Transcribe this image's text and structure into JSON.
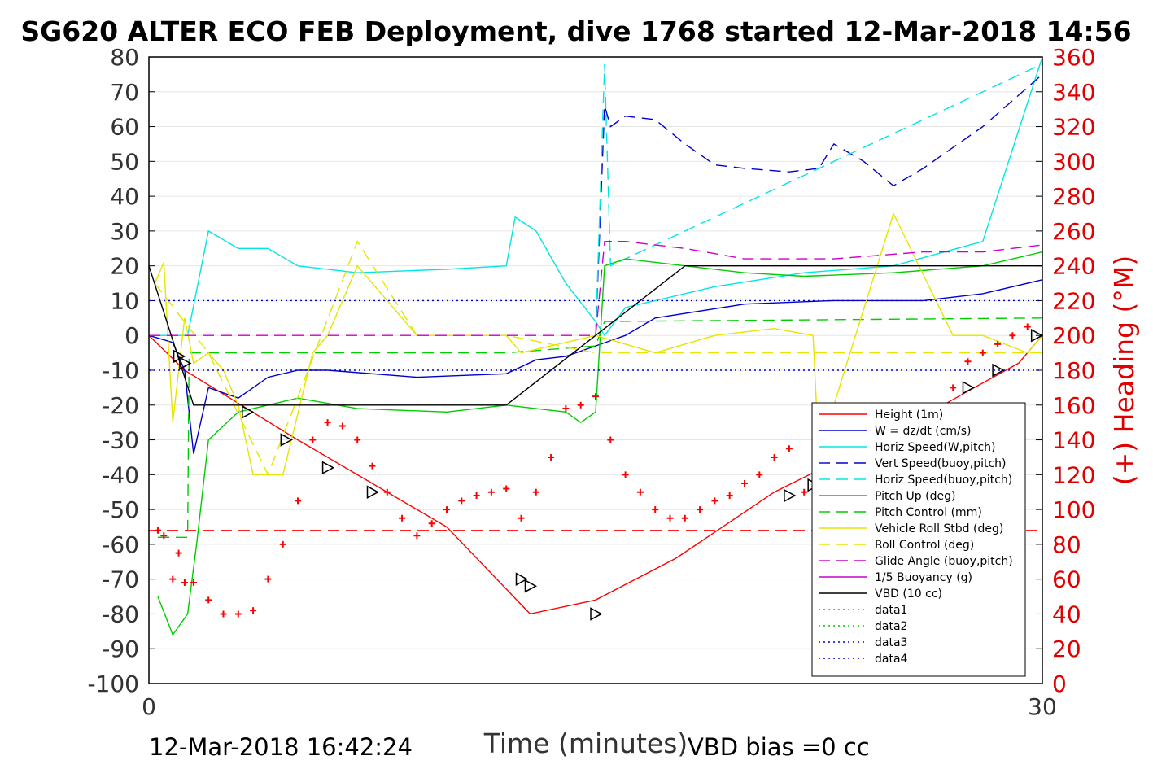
{
  "chart_data": {
    "type": "line",
    "title": "SG620 ALTER ECO FEB Deployment, dive 1768 started 12-Mar-2018 14:56",
    "xlabel": "Time (minutes)",
    "ylabel_right": "(+) Heading (°M)",
    "xlim": [
      0,
      30
    ],
    "ylim": [
      -100,
      80
    ],
    "ylim_right": [
      0,
      360
    ],
    "x_ticks": [
      "0",
      "30"
    ],
    "y_ticks": [
      "80",
      "70",
      "60",
      "50",
      "40",
      "30",
      "20",
      "10",
      "0",
      "-10",
      "-20",
      "-30",
      "-40",
      "-50",
      "-60",
      "-70",
      "-80",
      "-90",
      "-100"
    ],
    "y_ticks_right": [
      "360",
      "340",
      "320",
      "300",
      "280",
      "260",
      "240",
      "220",
      "200",
      "180",
      "160",
      "140",
      "120",
      "100",
      "80",
      "60",
      "40",
      "20",
      "0"
    ],
    "grid": true,
    "legend_position": "lower-right",
    "legend": [
      {
        "label": "Height (1m)",
        "color": "#ff0000",
        "dash": "solid"
      },
      {
        "label": "W = dz/dt (cm/s)",
        "color": "#0000cc",
        "dash": "solid"
      },
      {
        "label": "Horiz Speed(W,pitch)",
        "color": "#00e5e5",
        "dash": "solid"
      },
      {
        "label": "Vert Speed(buoy,pitch)",
        "color": "#0000cc",
        "dash": "dashed"
      },
      {
        "label": "Horiz Speed(buoy,pitch)",
        "color": "#00e5e5",
        "dash": "dashed"
      },
      {
        "label": "Pitch Up (deg)",
        "color": "#00cc00",
        "dash": "solid"
      },
      {
        "label": "Pitch Control (mm)",
        "color": "#00cc00",
        "dash": "dashed"
      },
      {
        "label": "Vehicle Roll Stbd (deg)",
        "color": "#e5e500",
        "dash": "solid"
      },
      {
        "label": "Roll Control (deg)",
        "color": "#e5e500",
        "dash": "dashed"
      },
      {
        "label": "Glide Angle (buoy,pitch)",
        "color": "#cc00cc",
        "dash": "dashed"
      },
      {
        "label": "1/5 Buoyancy (g)",
        "color": "#cc00cc",
        "dash": "solid"
      },
      {
        "label": "VBD (10 cc)",
        "color": "#000000",
        "dash": "solid"
      },
      {
        "label": "data1",
        "color": "#00cc00",
        "dash": "dotted"
      },
      {
        "label": "data2",
        "color": "#00cc00",
        "dash": "dotted"
      },
      {
        "label": "data3",
        "color": "#0000cc",
        "dash": "dotted"
      },
      {
        "label": "data4",
        "color": "#0000cc",
        "dash": "dotted"
      }
    ],
    "series": [
      {
        "name": "Height (1m)",
        "color": "#ff0000",
        "dash": "solid",
        "x": [
          0,
          1.2,
          5,
          10,
          12.8,
          15,
          17.7,
          21,
          25,
          27.5,
          29.2,
          30
        ],
        "y": [
          0,
          -10,
          -30,
          -55,
          -80,
          -76,
          -64,
          -45,
          -28,
          -16,
          -8,
          0
        ]
      },
      {
        "name": "W = dz/dt (cm/s)",
        "color": "#0000cc",
        "dash": "solid",
        "x": [
          0,
          0.8,
          1.2,
          1.5,
          2.0,
          3.0,
          4.0,
          5.0,
          6.0,
          9.0,
          12.0,
          13.0,
          14.0,
          15.0,
          16.0,
          17.0,
          20.0,
          23.0,
          26.0,
          28.0,
          30.0
        ],
        "y": [
          0,
          -2,
          -10,
          -34,
          -15,
          -18,
          -12,
          -10,
          -10,
          -12,
          -11,
          -7,
          -6,
          -3,
          0,
          5,
          9,
          10,
          10,
          12,
          16
        ]
      },
      {
        "name": "Horiz Speed(W,pitch)",
        "color": "#00e5e5",
        "dash": "solid",
        "x": [
          0,
          1.3,
          2.0,
          3.0,
          4.0,
          5.0,
          7.0,
          10.0,
          12.0,
          12.3,
          13.0,
          14.0,
          15.0,
          15.3,
          16.0,
          19.0,
          22.0,
          25.0,
          28.0,
          30.0
        ],
        "y": [
          0,
          0,
          30,
          25,
          25,
          20,
          18,
          19,
          20,
          34,
          30,
          15,
          4,
          0,
          8,
          14,
          18,
          20,
          27,
          80
        ]
      },
      {
        "name": "Vert Speed(buoy,pitch)",
        "color": "#0000cc",
        "dash": "dashed",
        "x": [
          15.0,
          15.3,
          15.5,
          16.0,
          17.0,
          18.0,
          19.0,
          20.0,
          21.5,
          22.5,
          23.0,
          24.0,
          25.0,
          26.0,
          28.0,
          30.0
        ],
        "y": [
          0,
          66,
          60,
          63,
          62,
          55,
          49,
          48,
          47,
          48,
          55,
          50,
          43,
          48,
          60,
          75
        ]
      },
      {
        "name": "Horiz Speed(buoy,pitch)",
        "color": "#00e5e5",
        "dash": "dashed",
        "x": [
          15.0,
          15.3,
          15.5,
          30.0
        ],
        "y": [
          0,
          78,
          20,
          78
        ]
      },
      {
        "name": "Pitch Up (deg)",
        "color": "#00cc00",
        "dash": "solid",
        "x": [
          0.3,
          0.8,
          1.3,
          1.6,
          2.0,
          3.0,
          4.0,
          5.0,
          7.0,
          10.0,
          12.0,
          14.0,
          14.5,
          15.0,
          15.3,
          16.0,
          18.0,
          20.0,
          22.0,
          25.0,
          28.0,
          30.0
        ],
        "y": [
          -75,
          -86,
          -80,
          -60,
          -30,
          -22,
          -20,
          -18,
          -21,
          -22,
          -20,
          -22,
          -25,
          -22,
          20,
          22,
          20,
          18,
          17,
          18,
          20,
          24
        ]
      },
      {
        "name": "Pitch Control (mm)",
        "color": "#00cc00",
        "dash": "dashed",
        "x": [
          0.3,
          1.3,
          1.35,
          2.0,
          12.0,
          15.0,
          15.3,
          30.0
        ],
        "y": [
          -58,
          -58,
          -5,
          -5,
          -5,
          -3,
          4,
          5
        ]
      },
      {
        "name": "Vehicle Roll Stbd (deg)",
        "color": "#e5e500",
        "dash": "solid",
        "x": [
          0.2,
          0.5,
          0.8,
          1.2,
          1.5,
          2.0,
          2.5,
          3.0,
          3.5,
          4.5,
          5.5,
          6.0,
          7.0,
          9.0,
          12.0,
          12.5,
          15.0,
          17.0,
          19.0,
          21.0,
          22.3,
          22.5,
          23.0,
          25.0,
          27.0,
          28.0,
          29.5,
          30.0
        ],
        "y": [
          15,
          21,
          -25,
          5,
          -8,
          -5,
          -10,
          -20,
          -40,
          -40,
          -5,
          0,
          20,
          0,
          0,
          -5,
          0,
          -5,
          0,
          2,
          0,
          -35,
          -20,
          35,
          0,
          0,
          -5,
          0
        ]
      },
      {
        "name": "Roll Control (deg)",
        "color": "#e5e500",
        "dash": "dashed",
        "x": [
          0.2,
          2.0,
          4.0,
          7.0,
          9.0,
          12.0,
          15.0,
          30.0
        ],
        "y": [
          15,
          -5,
          -40,
          27,
          0,
          0,
          -5,
          -5
        ]
      },
      {
        "name": "Glide Angle (buoy,pitch)",
        "color": "#cc00cc",
        "dash": "dashed",
        "x": [
          0,
          15.0,
          15.3,
          16.0,
          18.0,
          20.0,
          23.0,
          26.0,
          28.0,
          30.0
        ],
        "y": [
          0,
          0,
          27,
          27,
          25,
          22,
          22,
          24,
          24,
          26
        ]
      },
      {
        "name": "VBD (10 cc)",
        "color": "#000000",
        "dash": "solid",
        "x": [
          0,
          1.5,
          12.0,
          15.0,
          18.0,
          30.0
        ],
        "y": [
          20,
          -20,
          -20,
          0,
          20,
          20
        ]
      },
      {
        "name": "data1",
        "color": "#0000cc",
        "dash": "dotted",
        "x": [
          0,
          30.0
        ],
        "y": [
          10,
          10
        ]
      },
      {
        "name": "data2",
        "color": "#0000cc",
        "dash": "dotted",
        "x": [
          0,
          30.0
        ],
        "y": [
          -10,
          -10
        ]
      },
      {
        "name": "data3",
        "color": "#ff0000",
        "dash": "dashed",
        "x": [
          0,
          30.0
        ],
        "y": [
          -56,
          -56
        ]
      }
    ],
    "heading_points": {
      "name": "Heading",
      "color": "#ff0000",
      "axis": "right",
      "x": [
        0.3,
        0.5,
        0.8,
        1.0,
        1.2,
        1.5,
        2.0,
        2.5,
        3.0,
        3.5,
        4.0,
        4.5,
        5.0,
        5.5,
        6.0,
        6.5,
        7.0,
        7.5,
        8.0,
        8.5,
        9.0,
        9.5,
        10.0,
        10.5,
        11.0,
        11.5,
        12.0,
        12.5,
        13.0,
        13.5,
        14.0,
        14.5,
        15.0,
        15.5,
        16.0,
        16.5,
        17.0,
        17.5,
        18.0,
        18.5,
        19.0,
        19.5,
        20.0,
        20.5,
        21.0,
        21.5,
        22.0,
        22.5,
        23.0,
        23.5,
        24.0,
        24.5,
        25.0,
        25.5,
        26.0,
        26.5,
        27.0,
        27.5,
        28.0,
        28.5,
        29.0,
        29.5
      ],
      "y": [
        88,
        85,
        60,
        75,
        58,
        58,
        48,
        40,
        40,
        42,
        60,
        80,
        105,
        140,
        150,
        148,
        140,
        125,
        110,
        95,
        85,
        92,
        100,
        105,
        108,
        110,
        112,
        95,
        110,
        130,
        158,
        160,
        165,
        140,
        120,
        110,
        100,
        95,
        95,
        100,
        105,
        108,
        115,
        120,
        130,
        135,
        110,
        70,
        50,
        42,
        40,
        45,
        60,
        80,
        130,
        150,
        170,
        185,
        190,
        195,
        200,
        205
      ]
    },
    "triangle_markers": {
      "x": [
        1.0,
        1.2,
        3.3,
        4.6,
        6.0,
        7.5,
        12.5,
        12.8,
        15.0,
        21.5,
        22.3,
        25.0,
        25.8,
        27.5,
        28.5,
        29.8
      ],
      "y": [
        -6,
        -8,
        -22,
        -30,
        -38,
        -45,
        -70,
        -72,
        -80,
        -46,
        -43,
        -32,
        -26,
        -15,
        -10,
        0
      ]
    },
    "bottom_left_text": "12-Mar-2018 16:42:24",
    "bottom_right_text": "VBD bias =0 cc"
  }
}
